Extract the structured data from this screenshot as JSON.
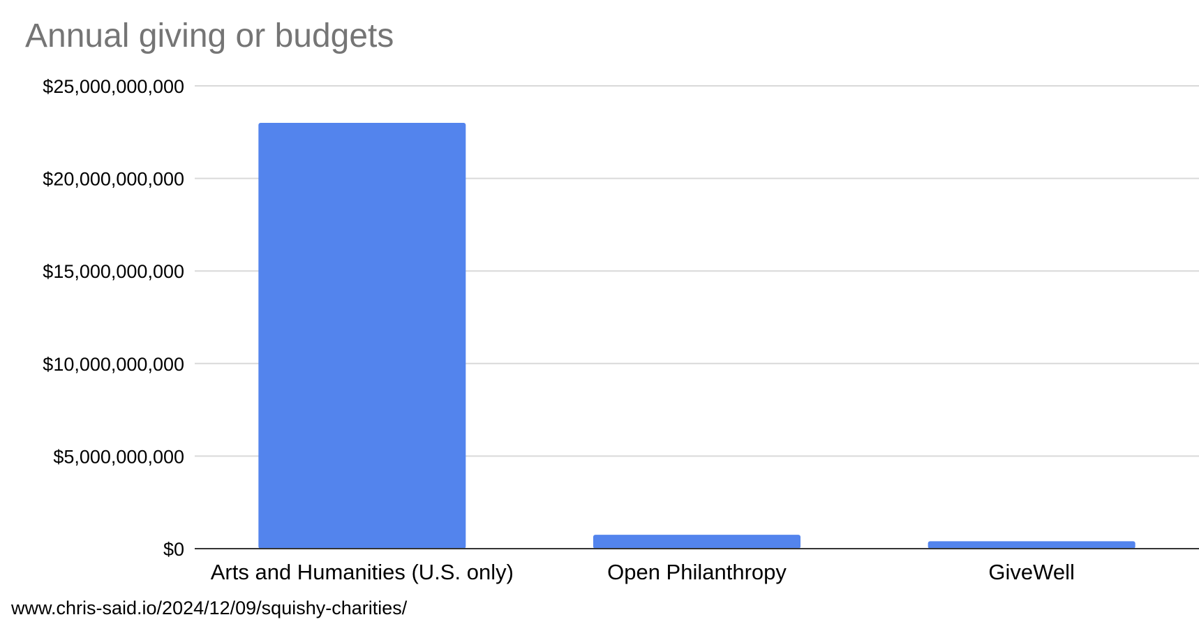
{
  "colors": {
    "bar": "#5384ED",
    "title": "#757575",
    "grid": "#d9d9d9",
    "baseline": "#333333"
  },
  "chart_data": {
    "type": "bar",
    "title": "Annual giving or budgets",
    "xlabel": "",
    "ylabel": "",
    "categories": [
      "Arts and Humanities (U.S. only)",
      "Open Philanthropy",
      "GiveWell"
    ],
    "values": [
      23000000000,
      750000000,
      400000000
    ],
    "ylim": [
      0,
      25000000000
    ],
    "yticks": [
      0,
      5000000000,
      10000000000,
      15000000000,
      20000000000,
      25000000000
    ],
    "ytick_labels": [
      "$0",
      "$5,000,000,000",
      "$10,000,000,000",
      "$15,000,000,000",
      "$20,000,000,000",
      "$25,000,000,000"
    ],
    "grid": true,
    "legend": "none"
  },
  "source_caption": "www.chris-said.io/2024/12/09/squishy-charities/"
}
